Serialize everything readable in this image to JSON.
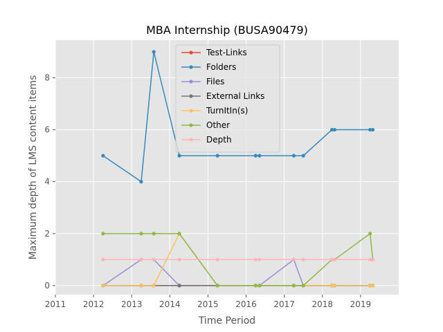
{
  "chart_data": {
    "type": "line",
    "title": "MBA Internship (BUSA90479)",
    "xlabel": "Time Period",
    "ylabel": "Maximum depth of LMS content items",
    "xlim": [
      2011,
      2020
    ],
    "ylim": [
      -0.35,
      9.45
    ],
    "xticks": [
      "2011",
      "2012",
      "2013",
      "2014",
      "2015",
      "2016",
      "2017",
      "2018",
      "2019"
    ],
    "yticks": [
      "0",
      "2",
      "4",
      "6",
      "8"
    ],
    "grid": true,
    "legend_position": "top-center",
    "x": [
      2012.25,
      2013.25,
      2013.58,
      2014.25,
      2015.25,
      2016.25,
      2016.35,
      2017.25,
      2017.5,
      2018.25,
      2018.32,
      2019.25,
      2019.32
    ],
    "series": [
      {
        "name": "Test-Links",
        "color": "#E24A33",
        "values": [
          0,
          0,
          0,
          0,
          0,
          0,
          0,
          0,
          0,
          0,
          0,
          0,
          0
        ]
      },
      {
        "name": "Folders",
        "color": "#348ABD",
        "values": [
          5,
          4,
          9,
          5,
          5,
          5,
          5,
          5,
          5,
          6,
          6,
          6,
          6
        ]
      },
      {
        "name": "Files",
        "color": "#988ED5",
        "values": [
          0,
          1,
          1,
          0,
          0,
          0,
          0,
          1,
          0,
          0,
          0,
          0,
          0
        ]
      },
      {
        "name": "External Links",
        "color": "#777777",
        "values": [
          0,
          0,
          0,
          0,
          0,
          0,
          0,
          0,
          0,
          0,
          0,
          0,
          0
        ]
      },
      {
        "name": "TurnItIn(s)",
        "color": "#FBC15E",
        "values": [
          0,
          0,
          0,
          2,
          0,
          0,
          0,
          0,
          0,
          0,
          0,
          0,
          0
        ]
      },
      {
        "name": "Other",
        "color": "#8EBA42",
        "values": [
          2,
          2,
          2,
          2,
          0,
          0,
          0,
          0,
          0,
          1,
          1,
          2,
          1
        ]
      },
      {
        "name": "Depth",
        "color": "#FFB5B8",
        "values": [
          1,
          1,
          1,
          1,
          1,
          1,
          1,
          1,
          1,
          1,
          1,
          1,
          1
        ]
      }
    ]
  }
}
